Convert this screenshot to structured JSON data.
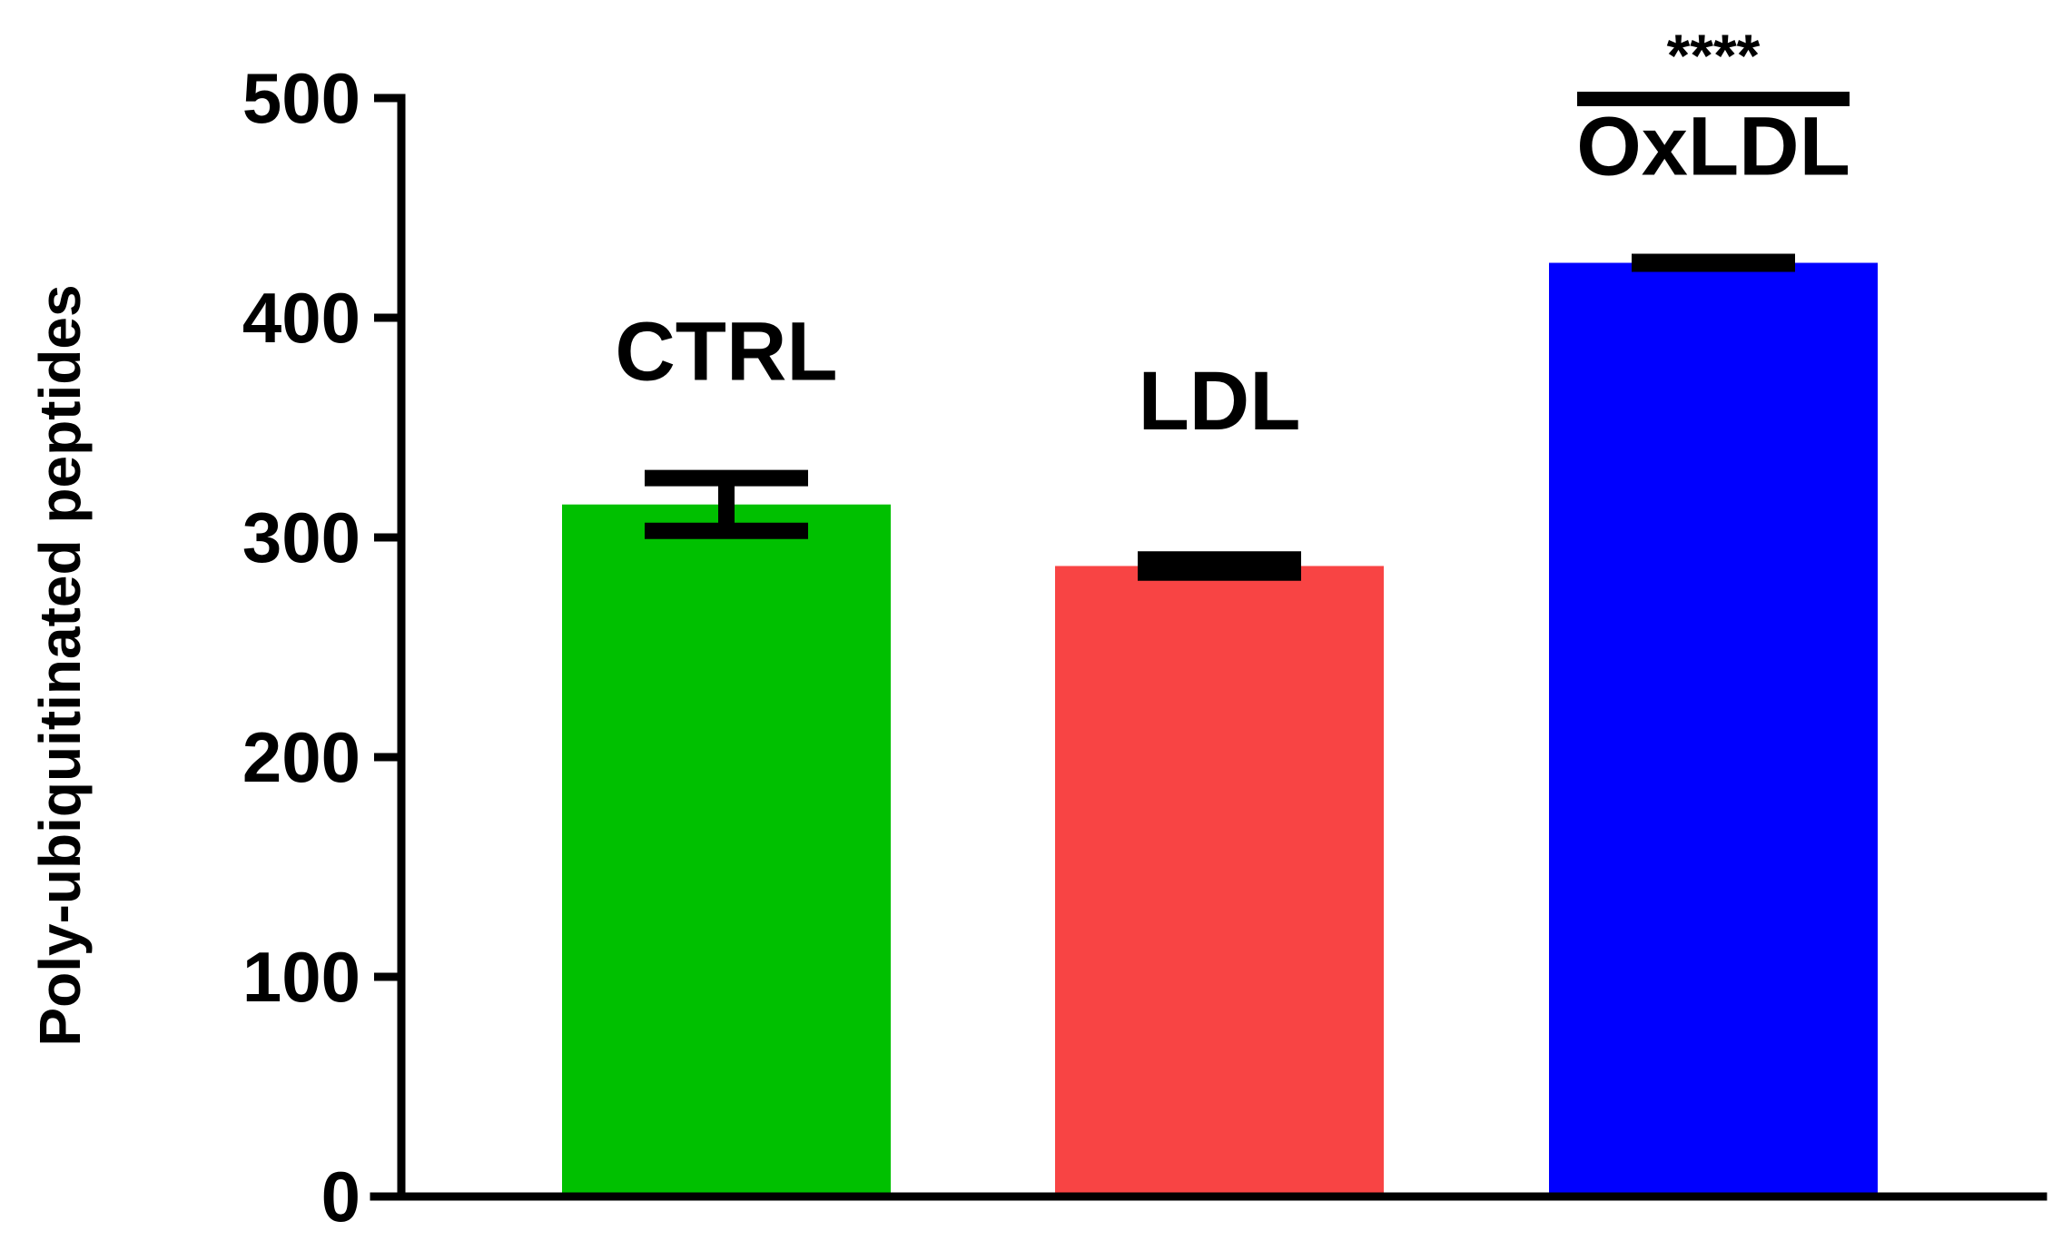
{
  "chart_data": {
    "type": "bar",
    "categories": [
      "CTRL",
      "LDL",
      "OxLDL"
    ],
    "values": [
      315,
      287,
      425
    ],
    "errors": [
      12,
      3,
      2
    ],
    "colors": [
      "#00c000",
      "#f84444",
      "#0000ff"
    ],
    "ylabel": "Poly-ubiquitinated peptides",
    "xlabel": "",
    "ylim": [
      0,
      500
    ],
    "yticks": [
      0,
      100,
      200,
      300,
      400,
      500
    ],
    "grid": false,
    "significance": {
      "label": "****",
      "category": "OxLDL"
    }
  }
}
